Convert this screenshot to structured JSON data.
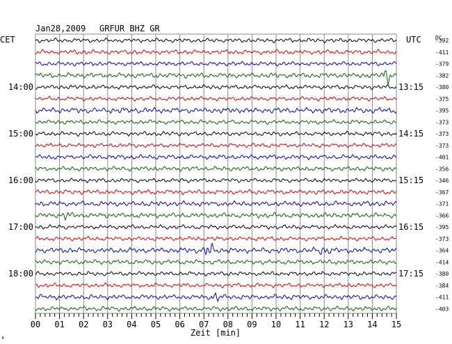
{
  "header": {
    "date": "Jan28,2009",
    "station": "GRFUR BHZ GR",
    "left_zone": "CET",
    "right_zone": "UTC",
    "dc_label": "DC"
  },
  "footer": {
    "xlabel": "Zeit [min]",
    "corner_mark": "∧"
  },
  "colors": {
    "trace_cycle": [
      "#000000",
      "#dd0000",
      "#0000cc",
      "#006600"
    ],
    "grid": "#888888",
    "background": "#ffffff"
  },
  "chart_data": {
    "type": "line",
    "title": "Jan28,2009   GRFUR BHZ GR",
    "xlabel": "Zeit [min]",
    "xlim": [
      0,
      15
    ],
    "x_ticks": [
      "00",
      "01",
      "02",
      "03",
      "04",
      "05",
      "06",
      "07",
      "08",
      "09",
      "10",
      "11",
      "12",
      "13",
      "14",
      "15"
    ],
    "trace_count": 24,
    "trace_interval_min": 15,
    "left_hour_labels": [
      {
        "trace_index": 4,
        "label": "14:00"
      },
      {
        "trace_index": 8,
        "label": "15:00"
      },
      {
        "trace_index": 12,
        "label": "16:00"
      },
      {
        "trace_index": 16,
        "label": "17:00"
      },
      {
        "trace_index": 20,
        "label": "18:00"
      }
    ],
    "right_hour_labels": [
      {
        "trace_index": 4,
        "label": "13:15"
      },
      {
        "trace_index": 8,
        "label": "14:15"
      },
      {
        "trace_index": 12,
        "label": "15:15"
      },
      {
        "trace_index": 16,
        "label": "16:15"
      },
      {
        "trace_index": 20,
        "label": "17:15"
      }
    ],
    "dc_offsets": [
      "-392",
      "-411",
      "-379",
      "-382",
      "-380",
      "-375",
      "-395",
      "-373",
      "-373",
      "-373",
      "-401",
      "-356",
      "-346",
      "-367",
      "-371",
      "-366",
      "-395",
      "-373",
      "-364",
      "-414",
      "-380",
      "-384",
      "-411",
      "-403"
    ],
    "amplitude_scale": [
      1.0,
      1.1,
      1.0,
      1.2,
      1.0,
      1.0,
      1.3,
      1.0,
      1.0,
      1.0,
      1.1,
      1.1,
      1.0,
      1.1,
      1.2,
      1.2,
      1.0,
      1.0,
      1.3,
      1.1,
      1.0,
      1.0,
      1.2,
      1.1
    ],
    "events": [
      {
        "trace_index": 3,
        "minute": 14.6,
        "amplitude": 2.6
      },
      {
        "trace_index": 15,
        "minute": 1.3,
        "amplitude": 1.6
      },
      {
        "trace_index": 18,
        "minute": 7.2,
        "amplitude": 2.8
      },
      {
        "trace_index": 18,
        "minute": 12.0,
        "amplitude": 1.6
      },
      {
        "trace_index": 22,
        "minute": 7.5,
        "amplitude": 1.4
      }
    ]
  }
}
